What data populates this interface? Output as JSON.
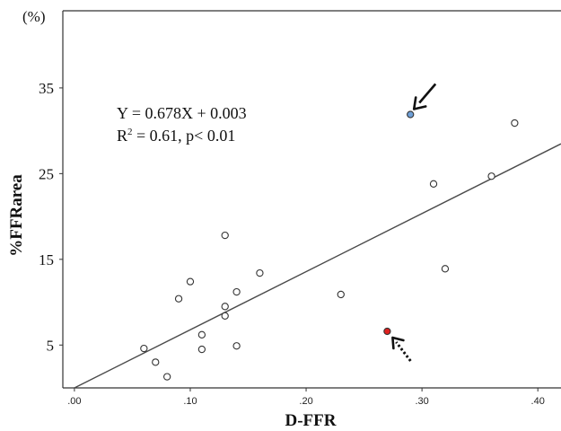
{
  "chart_data": {
    "type": "scatter",
    "title": "",
    "xlabel": "D-FFR",
    "ylabel": "%FFRarea",
    "y_unit": "(%)",
    "xlim": [
      -0.01,
      0.42
    ],
    "ylim": [
      0,
      44
    ],
    "x_ticks": [
      0.0,
      0.1,
      0.2,
      0.3,
      0.4
    ],
    "x_tick_labels": [
      ".00",
      ".10",
      ".20",
      ".30",
      ".40"
    ],
    "y_ticks": [
      5,
      15,
      25,
      35
    ],
    "y_tick_labels": [
      "5",
      "15",
      "25",
      "35"
    ],
    "grid": false,
    "legend": "none",
    "equation": "Y = 0.678X + 0.003",
    "r_squared_prefix": "R",
    "r_squared_exp": "2",
    "r_squared_rest": " = 0.61, p< 0.01",
    "regression": {
      "slope": 0.678,
      "intercept": 0.003,
      "x_range": [
        0.0,
        0.42
      ]
    },
    "points": [
      {
        "x": 0.06,
        "y": 4.6
      },
      {
        "x": 0.07,
        "y": 3.0
      },
      {
        "x": 0.08,
        "y": 1.3
      },
      {
        "x": 0.09,
        "y": 10.4
      },
      {
        "x": 0.1,
        "y": 12.4
      },
      {
        "x": 0.11,
        "y": 6.2
      },
      {
        "x": 0.11,
        "y": 4.5
      },
      {
        "x": 0.13,
        "y": 17.8
      },
      {
        "x": 0.13,
        "y": 9.5
      },
      {
        "x": 0.13,
        "y": 8.4
      },
      {
        "x": 0.14,
        "y": 11.2
      },
      {
        "x": 0.14,
        "y": 4.9
      },
      {
        "x": 0.16,
        "y": 13.4
      },
      {
        "x": 0.23,
        "y": 10.9
      },
      {
        "x": 0.27,
        "y": 6.6
      },
      {
        "x": 0.29,
        "y": 31.9
      },
      {
        "x": 0.31,
        "y": 23.8
      },
      {
        "x": 0.32,
        "y": 13.9
      },
      {
        "x": 0.36,
        "y": 24.7
      },
      {
        "x": 0.38,
        "y": 30.9
      }
    ],
    "highlighted": [
      {
        "x": 0.29,
        "y": 31.9,
        "fill": "#6fa0d8",
        "arrow": "solid"
      },
      {
        "x": 0.27,
        "y": 6.6,
        "fill": "#e0201e",
        "arrow": "dotted"
      }
    ],
    "colors": {
      "point_edge": "#333333",
      "point_fill": "#ffffff",
      "line": "#4a4a4a",
      "axis": "#333333"
    }
  }
}
